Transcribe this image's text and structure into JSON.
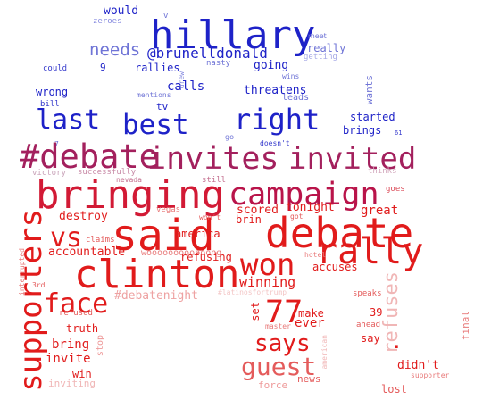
{
  "words": [
    {
      "text": "hillary",
      "color": "#1e22c8"
    },
    {
      "text": "last",
      "color": "#1e22c8"
    },
    {
      "text": "best",
      "color": "#1e22c8"
    },
    {
      "text": "right",
      "color": "#1e22c8"
    },
    {
      "text": "needs",
      "color": "#6f74d6"
    },
    {
      "text": "@brunelldonald",
      "color": "#1e22c8"
    },
    {
      "text": "would",
      "color": "#1e22c8"
    },
    {
      "text": "zeroes",
      "color": "#8a8ee0"
    },
    {
      "text": "v",
      "color": "#6f74d6"
    },
    {
      "text": "meet",
      "color": "#6f74d6"
    },
    {
      "text": "really",
      "color": "#6f74d6"
    },
    {
      "text": "getting",
      "color": "#a7aae6"
    },
    {
      "text": "could",
      "color": "#3539cc"
    },
    {
      "text": "9",
      "color": "#1e22c8"
    },
    {
      "text": "rallies",
      "color": "#1e22c8"
    },
    {
      "text": "nasty",
      "color": "#6f74d6"
    },
    {
      "text": "going",
      "color": "#1e22c8"
    },
    {
      "text": "wins",
      "color": "#6f74d6"
    },
    {
      "text": "leads",
      "color": "#6f74d6"
    },
    {
      "text": "wrong",
      "color": "#1e22c8"
    },
    {
      "text": "bill",
      "color": "#3539cc"
    },
    {
      "text": "calls",
      "color": "#1e22c8"
    },
    {
      "text": "mentions",
      "color": "#6f74d6"
    },
    {
      "text": "tv",
      "color": "#1e22c8"
    },
    {
      "text": "drew",
      "color": "#8a8ee0"
    },
    {
      "text": "threatens",
      "color": "#1e22c8"
    },
    {
      "text": "wants",
      "color": "#6f74d6"
    },
    {
      "text": "started",
      "color": "#1e22c8"
    },
    {
      "text": "brings",
      "color": "#1e22c8"
    },
    {
      "text": "61",
      "color": "#3539cc"
    },
    {
      "text": "go",
      "color": "#6f74d6"
    },
    {
      "text": "doesn't",
      "color": "#3539cc"
    },
    {
      "text": "7",
      "color": "#6f74d6"
    },
    {
      "text": "#debate",
      "color": "#a3205d"
    },
    {
      "text": "invites",
      "color": "#a3205d"
    },
    {
      "text": "invited",
      "color": "#a3205d"
    },
    {
      "text": "victory",
      "color": "#c9a3b9"
    },
    {
      "text": "successfully",
      "color": "#c98ca8"
    },
    {
      "text": "campaign",
      "color": "#b9144a"
    },
    {
      "text": "thinks",
      "color": "#d3a8bd"
    },
    {
      "text": "nevada",
      "color": "#c46f8f"
    },
    {
      "text": "still",
      "color": "#c46f8f"
    },
    {
      "text": "bringing",
      "color": "#d21a35"
    },
    {
      "text": "goes",
      "color": "#dc4f5c"
    },
    {
      "text": "said",
      "color": "#e11b1b"
    },
    {
      "text": "debate",
      "color": "#e11b1b"
    },
    {
      "text": "supporters",
      "color": "#e11b1b"
    },
    {
      "text": "vs",
      "color": "#e11b1b"
    },
    {
      "text": "destroy",
      "color": "#e11b1b"
    },
    {
      "text": "vegas",
      "color": "#e87a7a"
    },
    {
      "text": "scored",
      "color": "#e11b1b"
    },
    {
      "text": "tonight",
      "color": "#e11b1b"
    },
    {
      "text": "great",
      "color": "#e11b1b"
    },
    {
      "text": "won't",
      "color": "#e45b5b"
    },
    {
      "text": "brin",
      "color": "#e11b1b"
    },
    {
      "text": "got",
      "color": "#e45b5b"
    },
    {
      "text": "rally",
      "color": "#e11b1b"
    },
    {
      "text": "claims",
      "color": "#e45b5b"
    },
    {
      "text": "america",
      "color": "#e11b1b"
    },
    {
      "text": "interrupted",
      "color": "#e87a7a"
    },
    {
      "text": "accountable",
      "color": "#e11b1b"
    },
    {
      "text": "won",
      "color": "#e11b1b"
    },
    {
      "text": "clinton",
      "color": "#e11b1b"
    },
    {
      "text": "woooooooooooong",
      "color": "#e87a7a"
    },
    {
      "text": "refusing",
      "color": "#e11b1b"
    },
    {
      "text": "hotel",
      "color": "#e87a7a"
    },
    {
      "text": "accuses",
      "color": "#e11b1b"
    },
    {
      "text": "winning",
      "color": "#e11b1b"
    },
    {
      "text": "3rd",
      "color": "#e45b5b"
    },
    {
      "text": "face",
      "color": "#e11b1b"
    },
    {
      "text": "#debatenight",
      "color": "#eea2a2"
    },
    {
      "text": "#latinosfortrump",
      "color": "#f3c6c6"
    },
    {
      "text": "refuses",
      "color": "#f0b6b6"
    },
    {
      "text": "speaks",
      "color": "#e45b5b"
    },
    {
      "text": "77",
      "color": "#e11b1b"
    },
    {
      "text": "set",
      "color": "#e11b1b"
    },
    {
      "text": "make",
      "color": "#e11b1b"
    },
    {
      "text": "39",
      "color": "#e11b1b"
    },
    {
      "text": "final",
      "color": "#e87a7a"
    },
    {
      "text": "refused",
      "color": "#e45b5b"
    },
    {
      "text": "truth",
      "color": "#e11b1b"
    },
    {
      "text": "master",
      "color": "#e87a7a"
    },
    {
      "text": "ever",
      "color": "#e11b1b"
    },
    {
      "text": "ahead",
      "color": "#e45b5b"
    },
    {
      "text": "says",
      "color": "#e11b1b"
    },
    {
      "text": "say",
      "color": "#e11b1b"
    },
    {
      "text": "stop",
      "color": "#ee9a9a"
    },
    {
      "text": "bring",
      "color": "#e11b1b"
    },
    {
      "text": "american",
      "color": "#f0b6b6"
    },
    {
      "text": ".",
      "color": "#e11b1b"
    },
    {
      "text": "invite",
      "color": "#e11b1b"
    },
    {
      "text": "guest",
      "color": "#e45b5b"
    },
    {
      "text": "didn't",
      "color": "#e11b1b"
    },
    {
      "text": "win",
      "color": "#e11b1b"
    },
    {
      "text": "supporter",
      "color": "#e87a7a"
    },
    {
      "text": "inviting",
      "color": "#f0b6b6"
    },
    {
      "text": "news",
      "color": "#e45b5b"
    },
    {
      "text": "force",
      "color": "#ee9a9a"
    },
    {
      "text": "lost",
      "color": "#e45b5b"
    }
  ]
}
